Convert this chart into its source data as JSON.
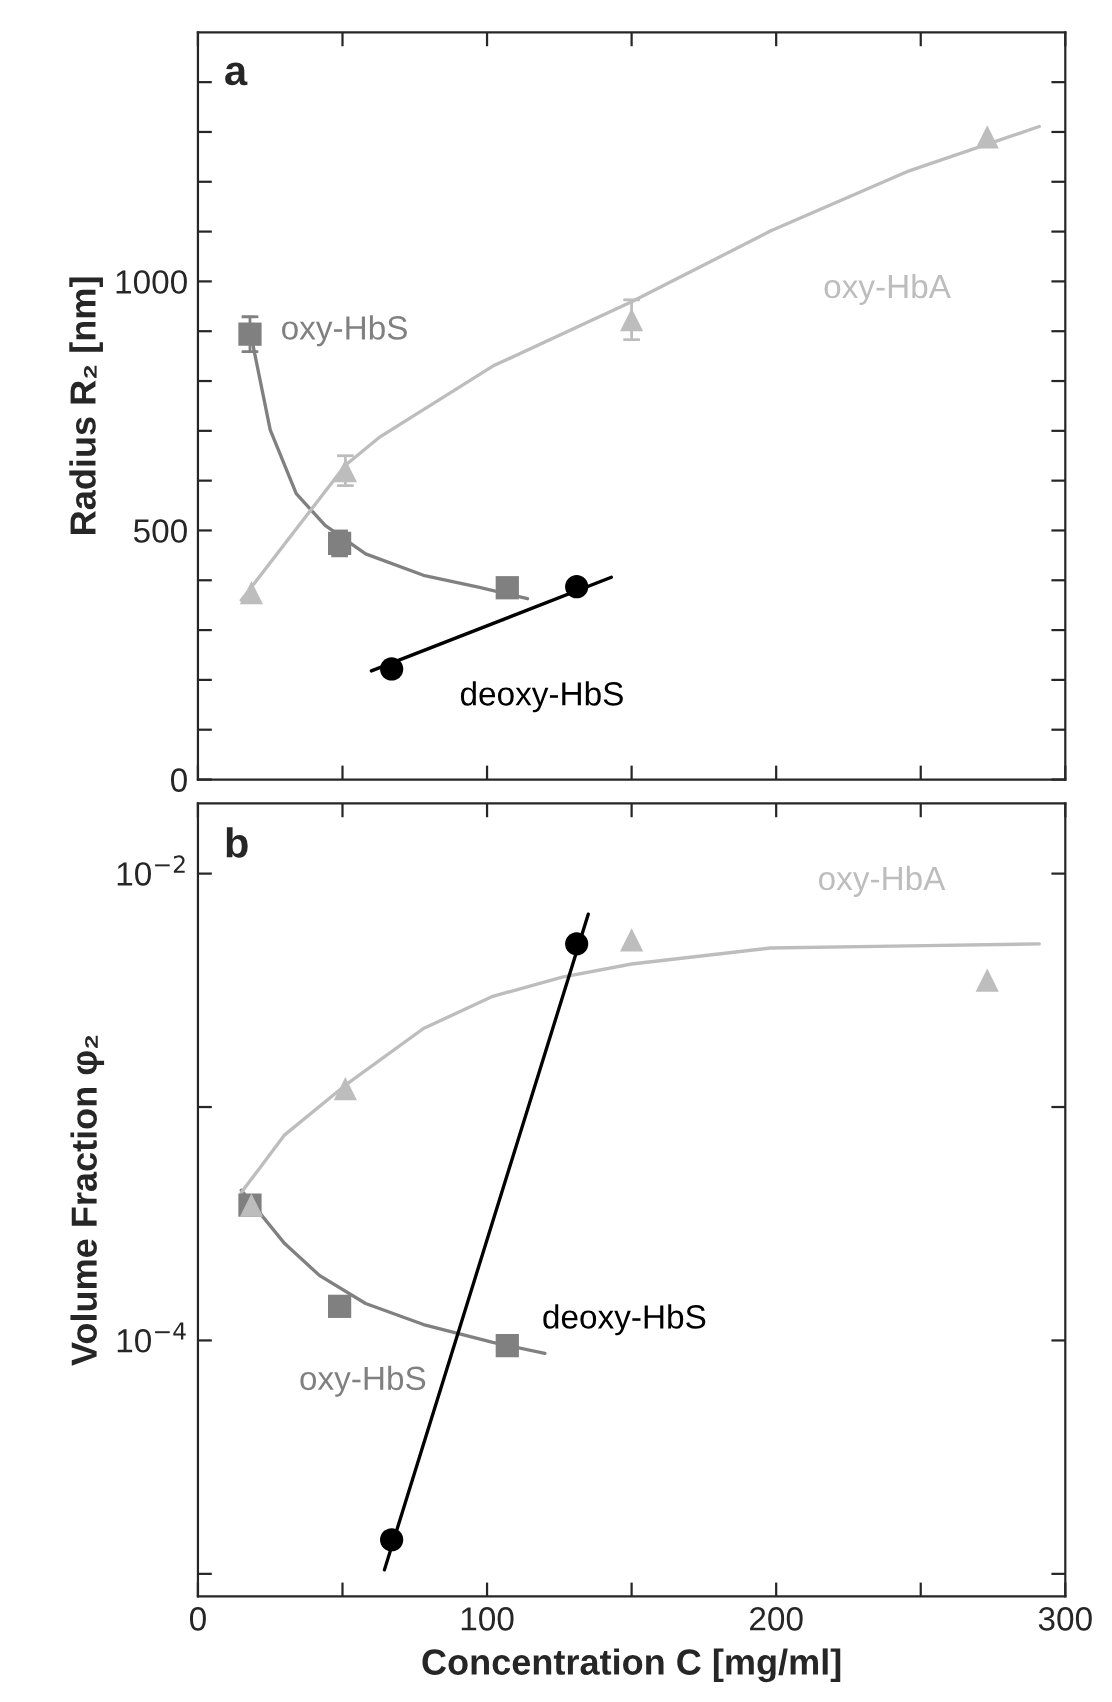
{
  "chart_data": [
    {
      "type": "scatter",
      "title": "a",
      "ylabel": "Radius R₂ [nm]",
      "xlim": [
        0,
        300
      ],
      "ylim": [
        0,
        1500
      ],
      "tick_labels": "y",
      "xticks": [
        {
          "value": 0,
          "label": null
        },
        {
          "value": 50,
          "label": null
        },
        {
          "value": 100,
          "label": null
        },
        {
          "value": 150,
          "label": null
        },
        {
          "value": 200,
          "label": null
        },
        {
          "value": 250,
          "label": null
        },
        {
          "value": 300,
          "label": null
        }
      ],
      "yticks": [
        0,
        {
          "value": 100,
          "label": null
        },
        {
          "value": 200,
          "label": null
        },
        {
          "value": 300,
          "label": null
        },
        {
          "value": 400,
          "label": null
        },
        500,
        {
          "value": 600,
          "label": null
        },
        {
          "value": 700,
          "label": null
        },
        {
          "value": 800,
          "label": null
        },
        {
          "value": 900,
          "label": null
        },
        1000,
        {
          "value": 1100,
          "label": null
        },
        {
          "value": 1200,
          "label": null
        },
        {
          "value": 1300,
          "label": null
        },
        {
          "value": 1400,
          "label": null
        }
      ],
      "series": [
        {
          "marker": "square",
          "color": "#808080",
          "x": [
            18,
            49,
            107
          ],
          "values": [
            894,
            474,
            385
          ],
          "errors": [
            35,
            25,
            null
          ]
        },
        {
          "marker": "triangle",
          "color": "#bdbdbd",
          "x": [
            18.5,
            51,
            150,
            273
          ],
          "values": [
            375,
            620,
            923,
            1290
          ],
          "errors": [
            null,
            30,
            40,
            null
          ]
        },
        {
          "marker": "circle",
          "color": "#000000",
          "x": [
            67,
            131
          ],
          "values": [
            222,
            387
          ]
        },
        {
          "type": "line",
          "name": "oxy-HbS",
          "color": "#808080",
          "x": [
            19,
            25,
            34,
            44,
            58,
            78,
            97,
            114
          ],
          "values": [
            873,
            702,
            574,
            510,
            453,
            410,
            386,
            363
          ]
        },
        {
          "type": "line",
          "name": "oxy-HbA",
          "color": "#bdbdbd",
          "x": [
            15,
            51,
            63,
            102,
            150,
            198,
            246,
            291
          ],
          "values": [
            360,
            631,
            688,
            830,
            959,
            1101,
            1222,
            1311
          ]
        },
        {
          "type": "line",
          "name": "deoxy-HbS",
          "color": "#000000",
          "x": [
            60,
            143
          ],
          "values": [
            218,
            406
          ]
        }
      ]
    },
    {
      "type": "scatter",
      "title": "b",
      "ylabel": "Volume Fraction φ₂",
      "xlabel": "Concentration C [mg/ml]",
      "log": "y",
      "xlim": [
        0,
        300
      ],
      "ylim": [
        8e-06,
        0.02
      ],
      "xticks": [
        0,
        {
          "value": 50,
          "label": null
        },
        100,
        {
          "value": 150,
          "label": null
        },
        200,
        {
          "value": 250,
          "label": null
        },
        300
      ],
      "yticks": [
        {
          "value": 1e-05,
          "label": null
        },
        {
          "value": 0.0001,
          "label": "10$^{−4}$"
        },
        {
          "value": 0.001,
          "label": null
        },
        {
          "value": 0.01,
          "label": "10$^{−2}$"
        }
      ],
      "series": [
        {
          "marker": "square",
          "color": "#808080",
          "x": [
            18,
            49,
            107
          ],
          "values": [
            0.00038,
            0.00014,
            9.5e-05
          ]
        },
        {
          "marker": "triangle",
          "color": "#bdbdbd",
          "x": [
            18.5,
            51,
            150,
            273
          ],
          "values": [
            0.00038,
            0.0012,
            0.0052,
            0.0035
          ]
        },
        {
          "marker": "circle",
          "color": "#000000",
          "x": [
            67,
            131
          ],
          "values": [
            1.4e-05,
            0.005
          ]
        },
        {
          "type": "line",
          "name": "oxy-HbS",
          "color": "#808080",
          "x": [
            15,
            30,
            42,
            58,
            78,
            102,
            120
          ],
          "values": [
            0.00044,
            0.00026,
            0.00019,
            0.000144,
            0.000117,
            9.8e-05,
            8.8e-05
          ]
        },
        {
          "type": "line",
          "name": "oxy-HbA",
          "color": "#bdbdbd",
          "x": [
            15,
            30,
            51,
            78,
            102,
            126,
            150,
            198,
            246,
            291
          ],
          "values": [
            0.00043,
            0.00076,
            0.00124,
            0.00217,
            0.00298,
            0.0036,
            0.0041,
            0.0048,
            0.0049,
            0.005
          ]
        },
        {
          "type": "line",
          "name": "deoxy-HbS",
          "color": "#000000",
          "x": [
            64.5,
            135
          ],
          "values": [
            1.04e-05,
            0.0067
          ]
        }
      ]
    }
  ]
}
